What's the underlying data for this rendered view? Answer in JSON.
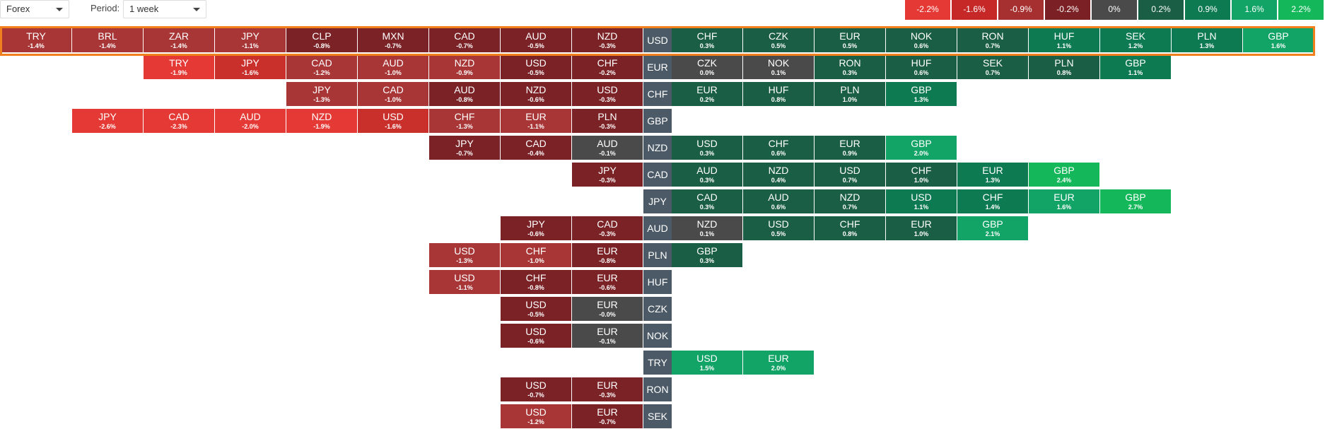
{
  "toolbar": {
    "market": "Forex",
    "period_label": "Period:",
    "period_value": "1 week"
  },
  "legend": [
    {
      "label": "-2.2%",
      "color": "#e53935"
    },
    {
      "label": "-1.6%",
      "color": "#c62828"
    },
    {
      "label": "-0.9%",
      "color": "#a63030"
    },
    {
      "label": "-0.2%",
      "color": "#7b2024"
    },
    {
      "label": "0%",
      "color": "#4a4a4a"
    },
    {
      "label": "0.2%",
      "color": "#1b5e46"
    },
    {
      "label": "0.9%",
      "color": "#0e7a52"
    },
    {
      "label": "1.6%",
      "color": "#12a366"
    },
    {
      "label": "2.2%",
      "color": "#14b85a"
    }
  ],
  "rows": [
    {
      "base": "USD",
      "left": [
        [
          "TRY",
          "-1.4%"
        ],
        [
          "BRL",
          "-1.4%"
        ],
        [
          "ZAR",
          "-1.4%"
        ],
        [
          "JPY",
          "-1.1%"
        ],
        [
          "CLP",
          "-0.8%"
        ],
        [
          "MXN",
          "-0.7%"
        ],
        [
          "CAD",
          "-0.7%"
        ],
        [
          "AUD",
          "-0.5%"
        ],
        [
          "NZD",
          "-0.3%"
        ]
      ],
      "right": [
        [
          "CHF",
          "0.3%"
        ],
        [
          "CZK",
          "0.5%"
        ],
        [
          "EUR",
          "0.5%"
        ],
        [
          "NOK",
          "0.6%"
        ],
        [
          "RON",
          "0.7%"
        ],
        [
          "HUF",
          "1.1%"
        ],
        [
          "SEK",
          "1.2%"
        ],
        [
          "PLN",
          "1.3%"
        ],
        [
          "GBP",
          "1.6%"
        ]
      ]
    },
    {
      "base": "EUR",
      "left": [
        [
          "TRY",
          "-1.9%"
        ],
        [
          "JPY",
          "-1.6%"
        ],
        [
          "CAD",
          "-1.2%"
        ],
        [
          "AUD",
          "-1.0%"
        ],
        [
          "NZD",
          "-0.9%"
        ],
        [
          "USD",
          "-0.5%"
        ],
        [
          "CHF",
          "-0.2%"
        ]
      ],
      "right": [
        [
          "CZK",
          "0.0%"
        ],
        [
          "NOK",
          "0.1%"
        ],
        [
          "RON",
          "0.3%"
        ],
        [
          "HUF",
          "0.6%"
        ],
        [
          "SEK",
          "0.7%"
        ],
        [
          "PLN",
          "0.8%"
        ],
        [
          "GBP",
          "1.1%"
        ]
      ]
    },
    {
      "base": "CHF",
      "left": [
        [
          "JPY",
          "-1.3%"
        ],
        [
          "CAD",
          "-1.0%"
        ],
        [
          "AUD",
          "-0.8%"
        ],
        [
          "NZD",
          "-0.6%"
        ],
        [
          "USD",
          "-0.3%"
        ]
      ],
      "right": [
        [
          "EUR",
          "0.2%"
        ],
        [
          "HUF",
          "0.8%"
        ],
        [
          "PLN",
          "1.0%"
        ],
        [
          "GBP",
          "1.3%"
        ]
      ]
    },
    {
      "base": "GBP",
      "left": [
        [
          "JPY",
          "-2.6%"
        ],
        [
          "CAD",
          "-2.3%"
        ],
        [
          "AUD",
          "-2.0%"
        ],
        [
          "NZD",
          "-1.9%"
        ],
        [
          "USD",
          "-1.6%"
        ],
        [
          "CHF",
          "-1.3%"
        ],
        [
          "EUR",
          "-1.1%"
        ],
        [
          "PLN",
          "-0.3%"
        ]
      ],
      "right": []
    },
    {
      "base": "NZD",
      "left": [
        [
          "JPY",
          "-0.7%"
        ],
        [
          "CAD",
          "-0.4%"
        ],
        [
          "AUD",
          "-0.1%"
        ]
      ],
      "right": [
        [
          "USD",
          "0.3%"
        ],
        [
          "CHF",
          "0.6%"
        ],
        [
          "EUR",
          "0.9%"
        ],
        [
          "GBP",
          "2.0%"
        ]
      ]
    },
    {
      "base": "CAD",
      "left": [
        [
          "JPY",
          "-0.3%"
        ]
      ],
      "right": [
        [
          "AUD",
          "0.3%"
        ],
        [
          "NZD",
          "0.4%"
        ],
        [
          "USD",
          "0.7%"
        ],
        [
          "CHF",
          "1.0%"
        ],
        [
          "EUR",
          "1.3%"
        ],
        [
          "GBP",
          "2.4%"
        ]
      ]
    },
    {
      "base": "JPY",
      "left": [],
      "right": [
        [
          "CAD",
          "0.3%"
        ],
        [
          "AUD",
          "0.6%"
        ],
        [
          "NZD",
          "0.7%"
        ],
        [
          "USD",
          "1.1%"
        ],
        [
          "CHF",
          "1.4%"
        ],
        [
          "EUR",
          "1.6%"
        ],
        [
          "GBP",
          "2.7%"
        ]
      ]
    },
    {
      "base": "AUD",
      "left": [
        [
          "JPY",
          "-0.6%"
        ],
        [
          "CAD",
          "-0.3%"
        ]
      ],
      "right": [
        [
          "NZD",
          "0.1%"
        ],
        [
          "USD",
          "0.5%"
        ],
        [
          "CHF",
          "0.8%"
        ],
        [
          "EUR",
          "1.0%"
        ],
        [
          "GBP",
          "2.1%"
        ]
      ]
    },
    {
      "base": "PLN",
      "left": [
        [
          "USD",
          "-1.3%"
        ],
        [
          "CHF",
          "-1.0%"
        ],
        [
          "EUR",
          "-0.8%"
        ]
      ],
      "right": [
        [
          "GBP",
          "0.3%"
        ]
      ]
    },
    {
      "base": "HUF",
      "left": [
        [
          "USD",
          "-1.1%"
        ],
        [
          "CHF",
          "-0.8%"
        ],
        [
          "EUR",
          "-0.6%"
        ]
      ],
      "right": []
    },
    {
      "base": "CZK",
      "left": [
        [
          "USD",
          "-0.5%"
        ],
        [
          "EUR",
          "-0.0%"
        ]
      ],
      "right": []
    },
    {
      "base": "NOK",
      "left": [
        [
          "USD",
          "-0.6%"
        ],
        [
          "EUR",
          "-0.1%"
        ]
      ],
      "right": []
    },
    {
      "base": "TRY",
      "left": [],
      "right": [
        [
          "USD",
          "1.5%"
        ],
        [
          "EUR",
          "2.0%"
        ]
      ]
    },
    {
      "base": "RON",
      "left": [
        [
          "USD",
          "-0.7%"
        ],
        [
          "EUR",
          "-0.3%"
        ]
      ],
      "right": []
    },
    {
      "base": "SEK",
      "left": [
        [
          "USD",
          "-1.2%"
        ],
        [
          "EUR",
          "-0.7%"
        ]
      ],
      "right": []
    }
  ],
  "colors": {
    "base_cell": "#4b5a66",
    "highlight_border": "#f07f1e"
  }
}
